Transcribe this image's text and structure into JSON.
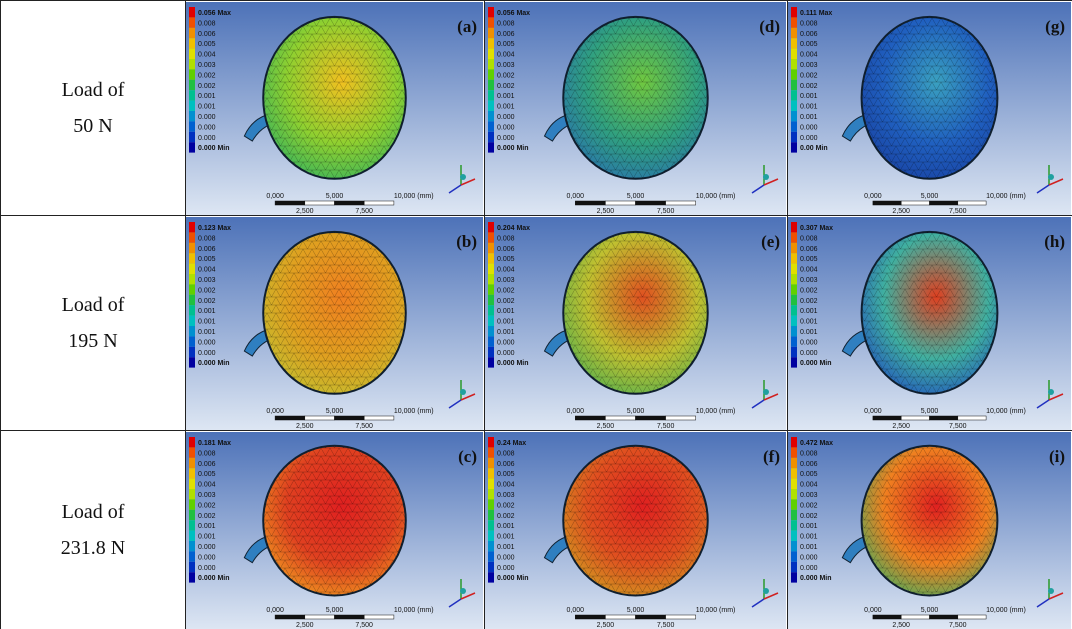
{
  "rows": [
    {
      "label": [
        "Load of",
        "50 N"
      ],
      "panels": [
        {
          "tag": "(a)",
          "legend": [
            "0.056 Max",
            "0.008",
            "0.006",
            "0.005",
            "0.004",
            "0.003",
            "0.002",
            "0.002",
            "0.001",
            "0.001",
            "0.000",
            "0.000",
            "0.000",
            "0.000 Min"
          ],
          "scale": [
            "0,000",
            "5,000",
            "10,000 (mm)",
            "2,500",
            "7,500"
          ]
        },
        {
          "tag": "(d)",
          "legend": [
            "0.056 Max",
            "0.008",
            "0.006",
            "0.005",
            "0.004",
            "0.003",
            "0.002",
            "0.002",
            "0.001",
            "0.001",
            "0.000",
            "0.000",
            "0.000",
            "0.000 Min"
          ],
          "scale": [
            "0,000",
            "5,000",
            "10,000 (mm)",
            "2,500",
            "7,500"
          ]
        },
        {
          "tag": "(g)",
          "legend": [
            "0.111 Max",
            "0.008",
            "0.006",
            "0.005",
            "0.004",
            "0.003",
            "0.002",
            "0.002",
            "0.001",
            "0.001",
            "0.001",
            "0.000",
            "0.000",
            "0.00 Min"
          ],
          "scale": [
            "0,000",
            "5,000",
            "10,000 (mm)",
            "2,500",
            "7,500"
          ]
        }
      ]
    },
    {
      "label": [
        "Load of",
        "195 N"
      ],
      "panels": [
        {
          "tag": "(b)",
          "legend": [
            "0.123 Max",
            "0.008",
            "0.006",
            "0.005",
            "0.004",
            "0.003",
            "0.002",
            "0.002",
            "0.001",
            "0.001",
            "0.001",
            "0.000",
            "0.000",
            "0.000 Min"
          ],
          "scale": [
            "0,000",
            "5,000",
            "10,000 (mm)",
            "2,500",
            "7,500"
          ]
        },
        {
          "tag": "(e)",
          "legend": [
            "0.204 Max",
            "0.008",
            "0.006",
            "0.005",
            "0.004",
            "0.003",
            "0.002",
            "0.002",
            "0.001",
            "0.001",
            "0.001",
            "0.000",
            "0.000",
            "0.000 Min"
          ],
          "scale": [
            "0,000",
            "5,000",
            "10,000 (mm)",
            "2,500",
            "7,500"
          ]
        },
        {
          "tag": "(h)",
          "legend": [
            "0.307 Max",
            "0.008",
            "0.006",
            "0.005",
            "0.004",
            "0.003",
            "0.002",
            "0.002",
            "0.001",
            "0.001",
            "0.001",
            "0.000",
            "0.000",
            "0.000 Min"
          ],
          "scale": [
            "0,000",
            "5,000",
            "10,000 (mm)",
            "2,500",
            "7,500"
          ]
        }
      ]
    },
    {
      "label": [
        "Load of",
        "231.8 N"
      ],
      "panels": [
        {
          "tag": "(c)",
          "legend": [
            "0.181 Max",
            "0.008",
            "0.006",
            "0.005",
            "0.004",
            "0.003",
            "0.002",
            "0.002",
            "0.001",
            "0.001",
            "0.000",
            "0.000",
            "0.000",
            "0.000 Min"
          ],
          "scale": [
            "0,000",
            "5,000",
            "10,000 (mm)",
            "2,500",
            "7,500"
          ]
        },
        {
          "tag": "(f)",
          "legend": [
            "0.24 Max",
            "0.008",
            "0.006",
            "0.005",
            "0.004",
            "0.003",
            "0.002",
            "0.002",
            "0.001",
            "0.001",
            "0.001",
            "0.000",
            "0.000",
            "0.000 Min"
          ],
          "scale": [
            "0,000",
            "5,000",
            "10,000 (mm)",
            "2,500",
            "7,500"
          ]
        },
        {
          "tag": "(i)",
          "legend": [
            "0.472 Max",
            "0.008",
            "0.006",
            "0.005",
            "0.004",
            "0.003",
            "0.002",
            "0.002",
            "0.001",
            "0.001",
            "0.001",
            "0.000",
            "0.000",
            "0.000 Min"
          ],
          "scale": [
            "0,000",
            "5,000",
            "10,000 (mm)",
            "2,500",
            "7,500"
          ]
        }
      ]
    }
  ]
}
